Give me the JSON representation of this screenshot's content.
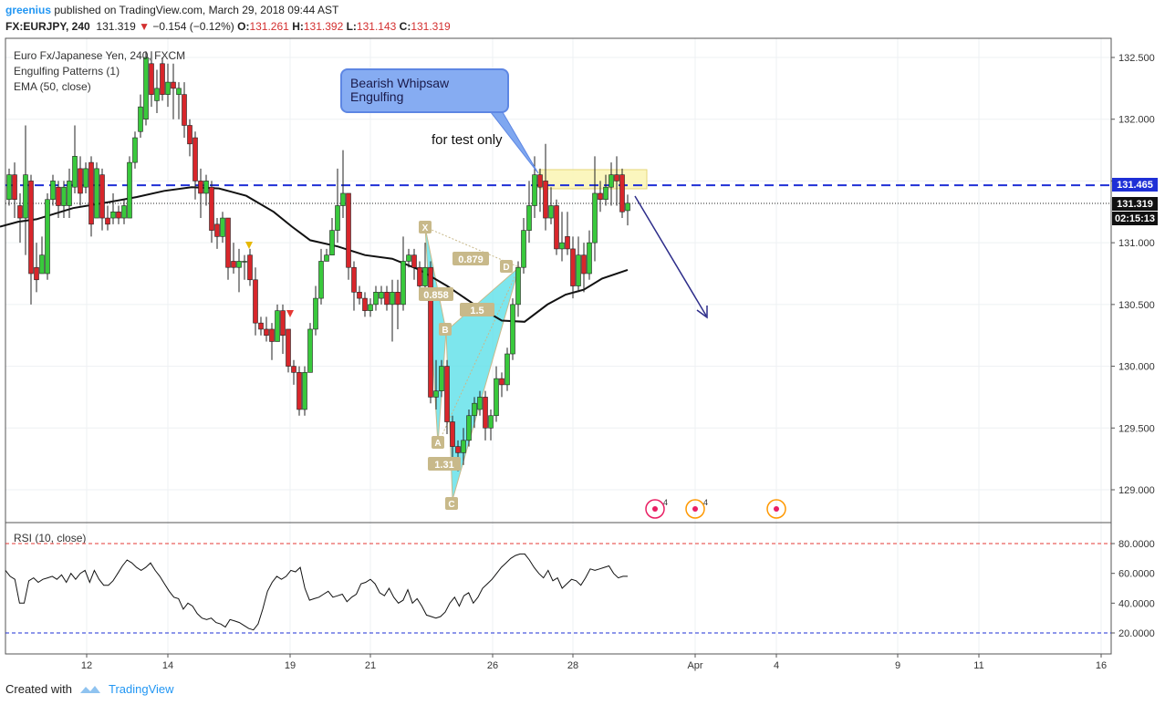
{
  "header": {
    "author": "greenius",
    "published": "published on TradingView.com, March 29, 2018 09:44 AST",
    "symbol": "FX:EURJPY, 240",
    "last": "131.319",
    "change": "−0.154 (−0.12%)",
    "o_label": "O:",
    "o": "131.261",
    "h_label": "H:",
    "h": "131.392",
    "l_label": "L:",
    "l": "131.143",
    "c_label": "C:",
    "c": "131.319"
  },
  "legend": {
    "title": "Euro Fx/Japanese Yen, 240, FXCM",
    "study1": "Engulfing Patterns (1)",
    "study2": "EMA (50, close)"
  },
  "annotations": {
    "callout": "Bearish Whipsaw\nEngulfing",
    "note": "for test only",
    "xabcd_points": [
      "X",
      "A",
      "B",
      "C",
      "D"
    ],
    "ratios": [
      "0.879",
      "0.858",
      "1.5",
      "1.31"
    ],
    "event_counts": [
      "4",
      "4"
    ]
  },
  "price_labels": {
    "dashed_level": "131.465",
    "last_price": "131.319",
    "countdown": "02:15:13"
  },
  "rsi": {
    "title": "RSI (10, close)",
    "ticks": [
      "80.0000",
      "60.0000",
      "40.0000",
      "20.0000"
    ],
    "upper": 80,
    "lower": 20,
    "values": [
      62,
      58,
      56,
      40,
      40,
      55,
      57,
      54,
      56,
      57,
      58,
      56,
      59,
      54,
      60,
      56,
      60,
      62,
      54,
      62,
      56,
      52,
      52,
      55,
      60,
      65,
      69,
      67,
      64,
      62,
      64,
      67,
      62,
      58,
      53,
      48,
      44,
      43,
      36,
      40,
      38,
      33,
      30,
      29,
      30,
      27,
      26,
      24,
      29,
      28,
      27,
      25,
      23,
      22,
      26,
      36,
      48,
      54,
      58,
      56,
      58,
      62,
      61,
      64,
      50,
      42,
      43,
      44,
      46,
      48,
      44,
      45,
      46,
      41,
      44,
      46,
      53,
      54,
      56,
      53,
      47,
      45,
      50,
      44,
      40,
      42,
      49,
      40,
      43,
      38,
      32,
      31,
      30,
      31,
      34,
      40,
      44,
      38,
      45,
      47,
      40,
      44,
      50,
      53,
      56,
      60,
      64,
      67,
      70,
      72,
      73,
      73,
      69,
      64,
      60,
      57,
      62,
      55,
      57,
      50,
      53,
      56,
      55,
      52,
      57,
      63,
      62,
      63,
      64,
      65,
      60,
      57,
      58,
      58
    ],
    "colors": {
      "line": "#111111",
      "upper": "#e53935",
      "lower": "#1e2fd6"
    }
  },
  "chart_data": {
    "type": "candlestick",
    "title": "Euro Fx/Japanese Yen, 240, FXCM",
    "x_ticks": [
      "12",
      "14",
      "19",
      "21",
      "26",
      "28",
      "Apr",
      "4",
      "9",
      "11",
      "16"
    ],
    "y_ticks": [
      "132.500",
      "132.000",
      "131.500",
      "131.000",
      "130.500",
      "130.000",
      "129.500",
      "129.000"
    ],
    "ylim": [
      128.75,
      132.7
    ],
    "grid": true,
    "levels": [
      {
        "value": 131.465,
        "style": "dashed",
        "color": "#1e2fd6"
      },
      {
        "value": 131.319,
        "style": "dotted",
        "color": "#222222"
      }
    ],
    "ema_series": [
      [
        0,
        131.13
      ],
      [
        20,
        131.17
      ],
      [
        40,
        131.19
      ],
      [
        80,
        131.28
      ],
      [
        120,
        131.33
      ],
      [
        150,
        131.37
      ],
      [
        180,
        131.42
      ],
      [
        210,
        131.45
      ],
      [
        240,
        131.44
      ],
      [
        270,
        131.38
      ],
      [
        300,
        131.25
      ],
      [
        320,
        131.13
      ],
      [
        340,
        131.02
      ],
      [
        370,
        130.97
      ],
      [
        400,
        130.9
      ],
      [
        430,
        130.87
      ],
      [
        460,
        130.78
      ],
      [
        490,
        130.65
      ],
      [
        520,
        130.5
      ],
      [
        550,
        130.37
      ],
      [
        575,
        130.36
      ],
      [
        600,
        130.5
      ],
      [
        620,
        130.58
      ],
      [
        640,
        130.62
      ],
      [
        660,
        130.71
      ],
      [
        688,
        130.78
      ]
    ],
    "candles": [
      [
        10,
        131.35,
        131.55,
        131.3,
        131.6
      ],
      [
        16,
        131.55,
        131.35,
        131.2,
        131.65
      ],
      [
        22,
        131.3,
        131.2,
        131.0,
        131.4
      ],
      [
        28,
        131.2,
        131.55,
        130.9,
        131.95
      ],
      [
        34,
        131.5,
        130.75,
        130.5,
        131.55
      ],
      [
        40,
        130.8,
        130.7,
        130.6,
        131.0
      ],
      [
        46,
        130.75,
        130.9,
        130.75,
        131.05
      ],
      [
        52,
        130.75,
        131.35,
        130.7,
        131.4
      ],
      [
        58,
        131.35,
        131.5,
        131.3,
        131.55
      ],
      [
        64,
        131.45,
        131.3,
        131.2,
        131.5
      ],
      [
        70,
        131.3,
        131.45,
        131.2,
        131.5
      ],
      [
        76,
        131.3,
        131.5,
        131.2,
        131.6
      ],
      [
        82,
        131.45,
        131.7,
        131.4,
        131.95
      ],
      [
        88,
        131.6,
        131.4,
        131.3,
        131.7
      ],
      [
        94,
        131.45,
        131.6,
        131.4,
        131.65
      ],
      [
        100,
        131.65,
        131.15,
        131.05,
        131.7
      ],
      [
        106,
        131.2,
        131.6,
        131.2,
        131.65
      ],
      [
        112,
        131.55,
        131.2,
        131.1,
        131.6
      ],
      [
        118,
        131.2,
        131.15,
        131.1,
        131.3
      ],
      [
        124,
        131.2,
        131.25,
        131.15,
        131.4
      ],
      [
        130,
        131.25,
        131.2,
        131.15,
        131.3
      ],
      [
        136,
        131.2,
        131.3,
        131.15,
        131.35
      ],
      [
        142,
        131.2,
        131.65,
        131.2,
        131.7
      ],
      [
        148,
        131.65,
        131.85,
        131.6,
        131.9
      ],
      [
        154,
        131.9,
        132.1,
        131.85,
        132.2
      ],
      [
        160,
        132.0,
        132.5,
        131.95,
        132.55
      ],
      [
        166,
        132.45,
        132.2,
        132.1,
        132.55
      ],
      [
        172,
        132.15,
        132.25,
        132.05,
        132.4
      ],
      [
        178,
        132.45,
        132.2,
        132.15,
        132.5
      ],
      [
        184,
        132.2,
        132.3,
        132.1,
        132.45
      ],
      [
        190,
        132.3,
        132.25,
        132.0,
        132.45
      ],
      [
        196,
        132.2,
        132.25,
        132.0,
        132.3
      ],
      [
        202,
        132.2,
        131.95,
        131.85,
        132.3
      ],
      [
        208,
        131.95,
        131.8,
        131.7,
        132.0
      ],
      [
        214,
        131.85,
        131.5,
        131.35,
        131.9
      ],
      [
        220,
        131.5,
        131.4,
        131.2,
        131.6
      ],
      [
        226,
        131.4,
        131.5,
        131.3,
        131.55
      ],
      [
        232,
        131.45,
        131.1,
        131.0,
        131.5
      ],
      [
        238,
        131.15,
        131.05,
        130.95,
        131.2
      ],
      [
        244,
        131.05,
        131.2,
        131.0,
        131.25
      ],
      [
        250,
        131.2,
        130.8,
        130.7,
        131.2
      ],
      [
        256,
        130.85,
        130.8,
        130.75,
        131.0
      ],
      [
        262,
        130.8,
        130.85,
        130.6,
        130.95
      ],
      [
        268,
        130.85,
        130.85,
        130.7,
        130.9
      ],
      [
        274,
        130.9,
        130.7,
        130.65,
        130.95
      ],
      [
        280,
        130.7,
        130.35,
        130.25,
        130.8
      ],
      [
        286,
        130.35,
        130.3,
        130.25,
        130.4
      ],
      [
        292,
        130.3,
        130.25,
        130.2,
        130.4
      ],
      [
        298,
        130.3,
        130.2,
        130.05,
        130.35
      ],
      [
        304,
        130.2,
        130.45,
        130.2,
        130.5
      ],
      [
        310,
        130.45,
        130.25,
        130.1,
        130.5
      ],
      [
        316,
        130.3,
        130.0,
        129.95,
        130.3
      ],
      [
        322,
        130.0,
        129.95,
        129.85,
        130.05
      ],
      [
        328,
        129.95,
        129.65,
        129.6,
        130.0
      ],
      [
        334,
        129.65,
        129.95,
        129.6,
        130.0
      ],
      [
        340,
        129.95,
        130.3,
        129.95,
        130.35
      ],
      [
        346,
        130.3,
        130.55,
        130.25,
        130.65
      ],
      [
        352,
        130.55,
        130.85,
        130.5,
        130.95
      ],
      [
        358,
        130.85,
        130.9,
        130.85,
        130.95
      ],
      [
        364,
        130.9,
        131.1,
        130.9,
        131.2
      ],
      [
        370,
        131.1,
        131.3,
        131.0,
        131.6
      ],
      [
        376,
        131.3,
        131.4,
        131.2,
        131.75
      ],
      [
        382,
        131.4,
        130.8,
        130.7,
        131.4
      ],
      [
        388,
        130.8,
        130.6,
        130.45,
        130.85
      ],
      [
        394,
        130.6,
        130.55,
        130.5,
        130.65
      ],
      [
        400,
        130.55,
        130.45,
        130.4,
        130.6
      ],
      [
        406,
        130.45,
        130.5,
        130.4,
        130.55
      ],
      [
        412,
        130.5,
        130.6,
        130.45,
        130.65
      ],
      [
        418,
        130.55,
        130.6,
        130.5,
        130.65
      ],
      [
        424,
        130.6,
        130.5,
        130.45,
        130.65
      ],
      [
        430,
        130.5,
        130.6,
        130.2,
        130.7
      ],
      [
        436,
        130.6,
        130.5,
        130.3,
        130.7
      ],
      [
        442,
        130.5,
        130.85,
        130.45,
        131.05
      ],
      [
        448,
        130.85,
        130.9,
        130.8,
        130.95
      ],
      [
        454,
        130.9,
        130.8,
        130.7,
        130.95
      ],
      [
        460,
        130.8,
        130.65,
        130.6,
        130.85
      ],
      [
        466,
        130.65,
        130.8,
        130.6,
        131.0
      ],
      [
        472,
        130.8,
        129.75,
        129.7,
        130.85
      ],
      [
        478,
        129.75,
        129.8,
        129.65,
        130.05
      ],
      [
        484,
        129.8,
        130.0,
        129.75,
        130.05
      ],
      [
        490,
        130.0,
        129.55,
        129.45,
        130.05
      ],
      [
        496,
        129.55,
        129.35,
        129.25,
        129.6
      ],
      [
        502,
        129.35,
        129.3,
        129.15,
        129.4
      ],
      [
        508,
        129.3,
        129.4,
        129.2,
        129.5
      ],
      [
        514,
        129.4,
        129.6,
        129.35,
        129.65
      ],
      [
        520,
        129.6,
        129.7,
        129.5,
        129.75
      ],
      [
        526,
        129.65,
        129.75,
        129.6,
        129.8
      ],
      [
        532,
        129.75,
        129.5,
        129.4,
        129.8
      ],
      [
        538,
        129.5,
        129.6,
        129.4,
        129.65
      ],
      [
        544,
        129.6,
        129.9,
        129.55,
        130.0
      ],
      [
        550,
        129.9,
        129.85,
        129.75,
        129.95
      ],
      [
        556,
        129.85,
        130.1,
        129.8,
        130.15
      ],
      [
        562,
        130.1,
        130.5,
        130.05,
        130.55
      ],
      [
        568,
        130.5,
        130.8,
        130.4,
        130.85
      ],
      [
        574,
        130.8,
        131.1,
        130.75,
        131.2
      ],
      [
        580,
        131.1,
        131.3,
        131.0,
        131.5
      ],
      [
        586,
        131.3,
        131.55,
        131.2,
        131.7
      ],
      [
        592,
        131.55,
        131.45,
        131.25,
        131.6
      ],
      [
        598,
        131.5,
        131.2,
        131.1,
        131.8
      ],
      [
        604,
        131.2,
        131.3,
        131.15,
        131.45
      ],
      [
        610,
        131.3,
        130.95,
        130.9,
        131.35
      ],
      [
        616,
        130.95,
        131.0,
        130.85,
        131.25
      ],
      [
        622,
        131.05,
        130.95,
        130.9,
        131.25
      ],
      [
        628,
        130.95,
        130.65,
        130.55,
        131.05
      ],
      [
        634,
        130.65,
        130.9,
        130.6,
        131.05
      ],
      [
        640,
        130.9,
        130.75,
        130.6,
        131.0
      ],
      [
        646,
        130.75,
        131.0,
        130.7,
        131.1
      ],
      [
        652,
        131.0,
        131.4,
        130.85,
        131.7
      ],
      [
        658,
        131.4,
        131.35,
        131.25,
        131.5
      ],
      [
        664,
        131.35,
        131.45,
        131.3,
        131.55
      ],
      [
        670,
        131.45,
        131.55,
        131.3,
        131.65
      ],
      [
        676,
        131.55,
        131.5,
        131.3,
        131.7
      ],
      [
        682,
        131.55,
        131.25,
        131.2,
        131.6
      ],
      [
        688,
        131.26,
        131.32,
        131.14,
        131.39
      ]
    ],
    "colors": {
      "up": "#39c93c",
      "down": "#d8262b",
      "ema": "#111111",
      "harmonic_fill": "#5ce0e8",
      "harmonic_line": "#c8b98a"
    }
  }
}
